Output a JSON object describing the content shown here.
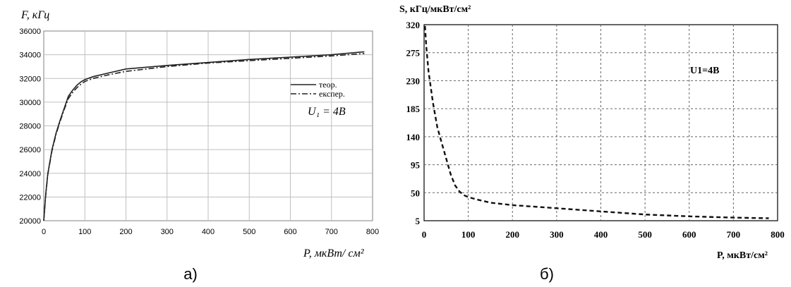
{
  "chart_data": [
    {
      "type": "line",
      "panel_label": "а)",
      "ylabel": "F, кГц",
      "xlabel": "P, мкВт/ см²",
      "annotation": "U₁ = 4B",
      "xlim": [
        0,
        800
      ],
      "ylim": [
        20000,
        36000
      ],
      "x_ticks": [
        0,
        100,
        200,
        300,
        400,
        500,
        600,
        700,
        800
      ],
      "y_ticks": [
        20000,
        22000,
        24000,
        26000,
        28000,
        30000,
        32000,
        34000,
        36000
      ],
      "grid": true,
      "legend_position": "right",
      "series": [
        {
          "name": "теор.",
          "style": "solid",
          "x": [
            0,
            5,
            10,
            20,
            30,
            40,
            50,
            60,
            70,
            80,
            90,
            100,
            120,
            150,
            200,
            300,
            400,
            500,
            600,
            700,
            780
          ],
          "y": [
            20000,
            22300,
            24000,
            26000,
            27400,
            28500,
            29500,
            30500,
            31000,
            31400,
            31700,
            31900,
            32150,
            32400,
            32800,
            33100,
            33350,
            33600,
            33800,
            34000,
            34250
          ]
        },
        {
          "name": "експер.",
          "style": "dash-dot",
          "x": [
            0,
            5,
            10,
            20,
            30,
            40,
            50,
            60,
            70,
            80,
            90,
            100,
            120,
            150,
            200,
            300,
            400,
            500,
            600,
            700,
            780
          ],
          "y": [
            20000,
            22200,
            23900,
            25900,
            27300,
            28400,
            29400,
            30300,
            30800,
            31200,
            31500,
            31750,
            32000,
            32250,
            32600,
            33000,
            33300,
            33500,
            33700,
            33900,
            34100
          ]
        }
      ]
    },
    {
      "type": "line",
      "panel_label": "б)",
      "ylabel": "S, кГц/мкВт/см²",
      "xlabel": "P, мкВт/см²",
      "annotation": "U1=4B",
      "xlim": [
        0,
        800
      ],
      "ylim": [
        5,
        320
      ],
      "x_ticks": [
        0,
        100,
        200,
        300,
        400,
        500,
        600,
        700,
        800
      ],
      "y_ticks": [
        5,
        50,
        95,
        140,
        185,
        230,
        275,
        320
      ],
      "grid": true,
      "series": [
        {
          "style": "dashed",
          "x": [
            2,
            5,
            10,
            20,
            30,
            40,
            50,
            60,
            70,
            80,
            90,
            100,
            120,
            150,
            200,
            300,
            400,
            500,
            600,
            700,
            780
          ],
          "y": [
            318,
            285,
            245,
            195,
            155,
            130,
            105,
            80,
            62,
            52,
            46,
            43,
            39,
            34,
            30,
            25,
            20,
            15,
            12,
            10,
            9
          ]
        }
      ]
    }
  ]
}
